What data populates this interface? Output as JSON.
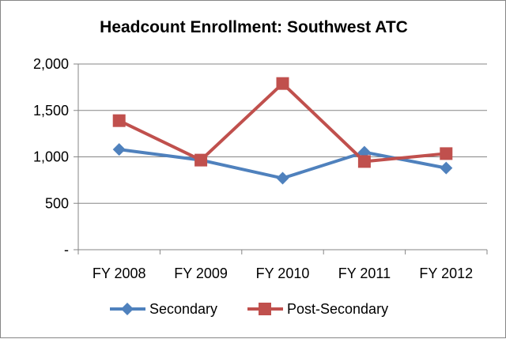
{
  "chart_data": {
    "type": "line",
    "title": "Headcount Enrollment: Southwest ATC",
    "categories": [
      "FY 2008",
      "FY 2009",
      "FY 2010",
      "FY 2011",
      "FY 2012"
    ],
    "ylim": [
      0,
      2000
    ],
    "yticks": [
      0,
      500,
      1000,
      1500,
      2000
    ],
    "ytick_labels": [
      "-",
      "500",
      "1,000",
      "1,500",
      "2,000"
    ],
    "grid": true,
    "legend_position": "bottom",
    "series": [
      {
        "name": "Secondary",
        "values": [
          1080,
          965,
          770,
          1050,
          880
        ],
        "color": "#4F81BD",
        "marker": "diamond"
      },
      {
        "name": "Post-Secondary",
        "values": [
          1390,
          965,
          1790,
          950,
          1035
        ],
        "color": "#C0504D",
        "marker": "square"
      }
    ]
  }
}
